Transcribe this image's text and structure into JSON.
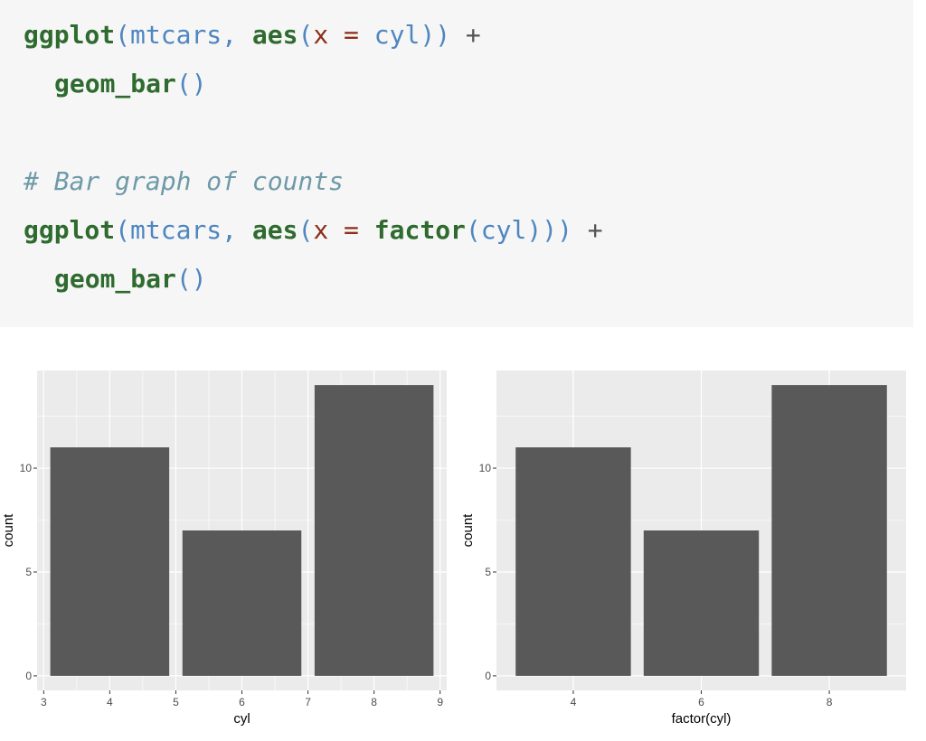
{
  "code": {
    "line1": {
      "fn1": "ggplot",
      "open1": "(",
      "arg1": "mtcars",
      "comma": ",",
      "space": " ",
      "fn2": "aes",
      "open2": "(",
      "param": "x",
      "eq": " = ",
      "arg2": "cyl",
      "close": "))",
      "plus": " +"
    },
    "line2": {
      "fn": "geom_bar",
      "parens": "()"
    },
    "comment": "# Bar graph of counts",
    "line3": {
      "fn1": "ggplot",
      "open1": "(",
      "arg1": "mtcars",
      "comma": ",",
      "space": " ",
      "fn2": "aes",
      "open2": "(",
      "param": "x",
      "eq": " = ",
      "fn3": "factor",
      "open3": "(",
      "arg2": "cyl",
      "close": ")))",
      "plus": " +"
    },
    "line4": {
      "fn": "geom_bar",
      "parens": "()"
    }
  },
  "colors": {
    "bar_fill": "#595959",
    "panel_bg": "#ebebeb",
    "grid": "#ffffff",
    "code_bg": "#f6f6f6"
  },
  "chart_data": [
    {
      "type": "bar",
      "x": [
        4,
        6,
        8
      ],
      "values": [
        11,
        7,
        14
      ],
      "xlabel": "cyl",
      "ylabel": "count",
      "xlim": [
        2.9,
        9.1
      ],
      "ylim": [
        -0.7,
        14.7
      ],
      "xticks": [
        3,
        4,
        5,
        6,
        7,
        8,
        9
      ],
      "yticks": [
        0,
        5,
        10
      ],
      "grid": true
    },
    {
      "type": "bar",
      "categories": [
        "4",
        "6",
        "8"
      ],
      "values": [
        11,
        7,
        14
      ],
      "xlabel": "factor(cyl)",
      "ylabel": "count",
      "ylim": [
        -0.7,
        14.7
      ],
      "yticks": [
        0,
        5,
        10
      ],
      "grid": true
    }
  ]
}
